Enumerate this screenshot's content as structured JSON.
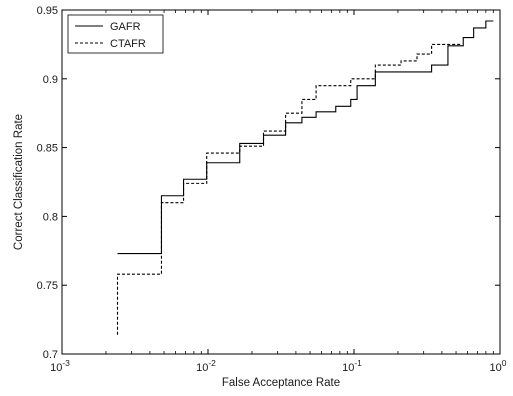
{
  "chart_data": {
    "type": "line",
    "title": "",
    "xlabel": "False Acceptance Rate",
    "ylabel": "Correct Classification Rate",
    "xscale": "log",
    "xlim": [
      0.001,
      1
    ],
    "ylim": [
      0.7,
      0.95
    ],
    "grid": false,
    "legend_position": "top-left",
    "x_ticks": [
      {
        "value": 0.001,
        "base": "10",
        "exp": "-3"
      },
      {
        "value": 0.01,
        "base": "10",
        "exp": "-2"
      },
      {
        "value": 0.1,
        "base": "10",
        "exp": "-1"
      },
      {
        "value": 1,
        "base": "10",
        "exp": "0"
      }
    ],
    "y_ticks": [
      {
        "value": 0.7,
        "label": "0.7"
      },
      {
        "value": 0.75,
        "label": "0.75"
      },
      {
        "value": 0.8,
        "label": "0.8"
      },
      {
        "value": 0.85,
        "label": "0.85"
      },
      {
        "value": 0.9,
        "label": "0.9"
      },
      {
        "value": 0.95,
        "label": "0.95"
      }
    ],
    "series": [
      {
        "name": "GAFR",
        "style": "solid",
        "color": "#000000",
        "x": [
          0.0024,
          0.0048,
          0.0068,
          0.0098,
          0.0165,
          0.024,
          0.034,
          0.044,
          0.055,
          0.075,
          0.095,
          0.105,
          0.14,
          0.21,
          0.34,
          0.44,
          0.56,
          0.66,
          0.8,
          0.9
        ],
        "y": [
          0.773,
          0.815,
          0.827,
          0.839,
          0.853,
          0.859,
          0.868,
          0.872,
          0.876,
          0.88,
          0.885,
          0.895,
          0.905,
          0.905,
          0.91,
          0.924,
          0.93,
          0.937,
          0.942,
          0.942
        ]
      },
      {
        "name": "CTAFR",
        "style": "dashed",
        "color": "#000000",
        "x": [
          0.0024,
          0.0024,
          0.0048,
          0.0068,
          0.0098,
          0.0165,
          0.024,
          0.034,
          0.044,
          0.055,
          0.075,
          0.095,
          0.105,
          0.14,
          0.21,
          0.27,
          0.34,
          0.55
        ],
        "y": [
          0.714,
          0.758,
          0.81,
          0.824,
          0.846,
          0.851,
          0.862,
          0.875,
          0.885,
          0.895,
          0.895,
          0.9,
          0.9,
          0.91,
          0.913,
          0.918,
          0.925,
          0.925
        ]
      }
    ]
  }
}
